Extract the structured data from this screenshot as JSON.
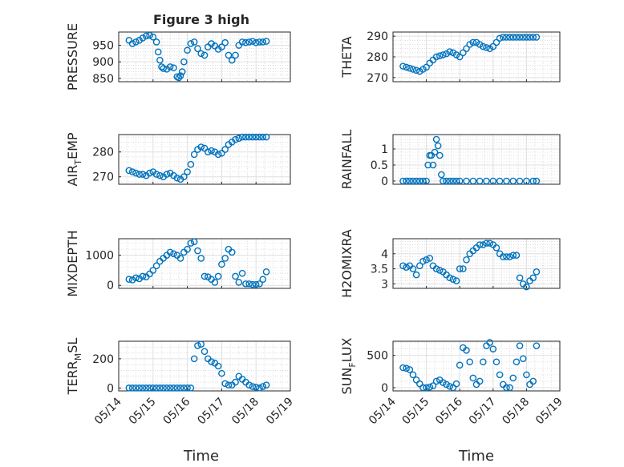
{
  "figure": {
    "title": "Figure 3 high"
  },
  "colors": {
    "marker": "#0072BD",
    "axes": "#262626",
    "grid": "#e0e0e0",
    "minor_grid": "#c8c8c8"
  },
  "chart_data": [
    {
      "type": "scatter",
      "ylabel": "PRESSURE",
      "title": "Figure 3 high",
      "ylim": [
        840,
        990
      ],
      "yticks": [
        850,
        900,
        950
      ],
      "xlim": [
        0,
        5
      ],
      "xticks": [
        "05/14",
        "05/15",
        "05/16",
        "05/17",
        "05/18",
        "05/19"
      ],
      "xticklabels_shown": false,
      "grid": "major+minor",
      "x": [
        0.3,
        0.4,
        0.5,
        0.6,
        0.7,
        0.8,
        0.9,
        1.0,
        1.1,
        1.15,
        1.2,
        1.25,
        1.3,
        1.4,
        1.5,
        1.6,
        1.7,
        1.75,
        1.8,
        1.85,
        1.9,
        2.0,
        2.1,
        2.2,
        2.3,
        2.4,
        2.5,
        2.6,
        2.7,
        2.8,
        2.9,
        3.0,
        3.1,
        3.2,
        3.3,
        3.4,
        3.5,
        3.6,
        3.7,
        3.8,
        3.9,
        4.0,
        4.1,
        4.2,
        4.3
      ],
      "y": [
        965,
        955,
        960,
        965,
        972,
        978,
        980,
        975,
        960,
        930,
        905,
        885,
        880,
        878,
        885,
        882,
        855,
        852,
        858,
        870,
        900,
        935,
        955,
        960,
        940,
        925,
        920,
        945,
        955,
        948,
        938,
        945,
        958,
        920,
        905,
        920,
        950,
        960,
        958,
        960,
        962,
        958,
        960,
        960,
        962
      ]
    },
    {
      "type": "scatter",
      "ylabel": "THETA",
      "ylim": [
        268,
        292
      ],
      "yticks": [
        270,
        280,
        290
      ],
      "xlim": [
        0,
        5
      ],
      "xticks": [
        "05/14",
        "05/15",
        "05/16",
        "05/17",
        "05/18",
        "05/19"
      ],
      "xticklabels_shown": false,
      "grid": "major+minor",
      "x": [
        0.3,
        0.4,
        0.5,
        0.6,
        0.7,
        0.8,
        0.9,
        1.0,
        1.1,
        1.2,
        1.3,
        1.4,
        1.5,
        1.6,
        1.7,
        1.8,
        1.9,
        2.0,
        2.1,
        2.2,
        2.3,
        2.4,
        2.5,
        2.6,
        2.7,
        2.8,
        2.9,
        3.0,
        3.1,
        3.2,
        3.3,
        3.4,
        3.5,
        3.6,
        3.7,
        3.8,
        3.9,
        4.0,
        4.1,
        4.2,
        4.3
      ],
      "y": [
        275.5,
        275,
        274.5,
        274,
        273.5,
        273,
        274,
        275,
        277,
        278.5,
        280,
        280.5,
        281,
        281.5,
        282.5,
        282,
        281,
        280,
        282,
        284,
        286,
        287,
        287,
        286,
        285,
        284.5,
        284,
        285,
        287,
        289,
        289.5,
        289.5,
        289.5,
        289.5,
        289.5,
        289.5,
        289.5,
        289.5,
        289.5,
        289.5,
        289.5
      ]
    },
    {
      "type": "scatter",
      "ylabel": "AIR_TEMP",
      "ylim": [
        267,
        287
      ],
      "yticks": [
        270,
        280
      ],
      "xlim": [
        0,
        5
      ],
      "xticks": [
        "05/14",
        "05/15",
        "05/16",
        "05/17",
        "05/18",
        "05/19"
      ],
      "xticklabels_shown": false,
      "grid": "major+minor",
      "x": [
        0.3,
        0.4,
        0.5,
        0.6,
        0.7,
        0.8,
        0.9,
        1.0,
        1.1,
        1.2,
        1.3,
        1.4,
        1.5,
        1.6,
        1.7,
        1.8,
        1.9,
        2.0,
        2.1,
        2.2,
        2.3,
        2.4,
        2.5,
        2.6,
        2.7,
        2.8,
        2.9,
        3.0,
        3.1,
        3.2,
        3.3,
        3.4,
        3.5,
        3.6,
        3.7,
        3.8,
        3.9,
        4.0,
        4.1,
        4.2,
        4.3
      ],
      "y": [
        272.5,
        272,
        271.5,
        271,
        271,
        270.5,
        271.5,
        272,
        271,
        270.5,
        270,
        271,
        271.5,
        270.5,
        269.5,
        269,
        270,
        272,
        275,
        279,
        281,
        282,
        281.5,
        280,
        280.5,
        280,
        279,
        279.5,
        281,
        283,
        284,
        285,
        285.5,
        286,
        286,
        286,
        286,
        286,
        286,
        286,
        286
      ]
    },
    {
      "type": "scatter",
      "ylabel": "RAINFALL",
      "ylim": [
        -0.1,
        1.45
      ],
      "yticks": [
        0,
        0.5,
        1
      ],
      "yticklabels": [
        "0",
        "0.5",
        "1"
      ],
      "xlim": [
        0,
        5
      ],
      "xticks": [
        "05/14",
        "05/15",
        "05/16",
        "05/17",
        "05/18",
        "05/19"
      ],
      "xticklabels_shown": false,
      "grid": "major+minor",
      "x": [
        0.3,
        0.4,
        0.5,
        0.6,
        0.7,
        0.8,
        0.9,
        1.0,
        1.05,
        1.1,
        1.15,
        1.2,
        1.25,
        1.3,
        1.35,
        1.4,
        1.45,
        1.5,
        1.6,
        1.7,
        1.8,
        1.9,
        2.0,
        2.2,
        2.4,
        2.6,
        2.8,
        3.0,
        3.2,
        3.4,
        3.6,
        3.8,
        4.0,
        4.2,
        4.3
      ],
      "y": [
        0,
        0,
        0,
        0,
        0,
        0,
        0,
        0,
        0.5,
        0.8,
        0.8,
        0.5,
        0.9,
        1.3,
        1.1,
        0.8,
        0.2,
        0,
        0,
        0,
        0,
        0,
        0,
        0,
        0,
        0,
        0,
        0,
        0,
        0,
        0,
        0,
        0,
        0,
        0
      ]
    },
    {
      "type": "scatter",
      "ylabel": "MIXDEPTH",
      "ylim": [
        -100,
        1550
      ],
      "yticks": [
        0,
        1000
      ],
      "xlim": [
        0,
        5
      ],
      "xticks": [
        "05/14",
        "05/15",
        "05/16",
        "05/17",
        "05/18",
        "05/19"
      ],
      "xticklabels_shown": false,
      "grid": "major+minor",
      "x": [
        0.3,
        0.4,
        0.5,
        0.6,
        0.7,
        0.8,
        0.9,
        1.0,
        1.1,
        1.2,
        1.3,
        1.4,
        1.5,
        1.6,
        1.7,
        1.8,
        1.9,
        2.0,
        2.1,
        2.2,
        2.3,
        2.4,
        2.5,
        2.6,
        2.7,
        2.8,
        2.9,
        3.0,
        3.1,
        3.2,
        3.3,
        3.4,
        3.5,
        3.6,
        3.7,
        3.8,
        3.9,
        4.0,
        4.1,
        4.2,
        4.3
      ],
      "y": [
        200,
        180,
        250,
        220,
        300,
        280,
        380,
        500,
        650,
        800,
        900,
        1000,
        1100,
        1050,
        1000,
        900,
        1100,
        1200,
        1400,
        1450,
        1150,
        900,
        300,
        280,
        200,
        100,
        300,
        700,
        900,
        1200,
        1100,
        300,
        100,
        400,
        50,
        50,
        30,
        30,
        50,
        200,
        450
      ]
    },
    {
      "type": "scatter",
      "ylabel": "H2OMIXRA",
      "ylim": [
        2.85,
        4.5
      ],
      "yticks": [
        3,
        3.5,
        4
      ],
      "yticklabels": [
        "3",
        "3.5",
        "4"
      ],
      "xlim": [
        0,
        5
      ],
      "xticks": [
        "05/14",
        "05/15",
        "05/16",
        "05/17",
        "05/18",
        "05/19"
      ],
      "xticklabels_shown": false,
      "grid": "major+minor",
      "x": [
        0.3,
        0.4,
        0.5,
        0.6,
        0.7,
        0.8,
        0.9,
        1.0,
        1.1,
        1.2,
        1.3,
        1.4,
        1.5,
        1.6,
        1.7,
        1.8,
        1.9,
        2.0,
        2.1,
        2.2,
        2.3,
        2.4,
        2.5,
        2.6,
        2.7,
        2.8,
        2.9,
        3.0,
        3.1,
        3.2,
        3.3,
        3.4,
        3.5,
        3.6,
        3.7,
        3.8,
        3.9,
        4.0,
        4.1,
        4.2,
        4.3
      ],
      "y": [
        3.6,
        3.55,
        3.6,
        3.5,
        3.3,
        3.6,
        3.75,
        3.8,
        3.85,
        3.6,
        3.5,
        3.45,
        3.4,
        3.3,
        3.2,
        3.15,
        3.1,
        3.5,
        3.5,
        3.8,
        4.0,
        4.1,
        4.2,
        4.3,
        4.3,
        4.35,
        4.35,
        4.3,
        4.2,
        4.0,
        3.9,
        3.9,
        3.9,
        3.95,
        3.95,
        3.2,
        3.0,
        2.9,
        3.1,
        3.2,
        3.4
      ]
    },
    {
      "type": "scatter",
      "ylabel": "TERR_MSL",
      "ylim": [
        -20,
        320
      ],
      "yticks": [
        0,
        200
      ],
      "xlim": [
        0,
        5
      ],
      "xticks": [
        "05/14",
        "05/15",
        "05/16",
        "05/17",
        "05/18",
        "05/19"
      ],
      "xticklabels_shown": true,
      "grid": "major+minor",
      "x": [
        0.3,
        0.4,
        0.5,
        0.6,
        0.7,
        0.8,
        0.9,
        1.0,
        1.1,
        1.2,
        1.3,
        1.4,
        1.5,
        1.6,
        1.7,
        1.8,
        1.9,
        2.0,
        2.1,
        2.2,
        2.3,
        2.4,
        2.5,
        2.6,
        2.7,
        2.8,
        2.9,
        3.0,
        3.1,
        3.2,
        3.3,
        3.4,
        3.5,
        3.6,
        3.7,
        3.8,
        3.9,
        4.0,
        4.1,
        4.2,
        4.3
      ],
      "y": [
        0,
        0,
        0,
        0,
        0,
        0,
        0,
        0,
        0,
        0,
        0,
        0,
        0,
        0,
        0,
        0,
        0,
        0,
        0,
        200,
        290,
        300,
        250,
        200,
        180,
        170,
        150,
        100,
        30,
        20,
        20,
        40,
        80,
        60,
        40,
        20,
        10,
        5,
        0,
        10,
        20
      ]
    },
    {
      "type": "scatter",
      "ylabel": "SUN_FLUX",
      "ylim": [
        -50,
        720
      ],
      "yticks": [
        0,
        500
      ],
      "xlim": [
        0,
        5
      ],
      "xticks": [
        "05/14",
        "05/15",
        "05/16",
        "05/17",
        "05/18",
        "05/19"
      ],
      "xticklabels_shown": true,
      "grid": "major+minor",
      "x": [
        0.3,
        0.4,
        0.5,
        0.6,
        0.7,
        0.8,
        0.9,
        1.0,
        1.1,
        1.2,
        1.3,
        1.4,
        1.5,
        1.6,
        1.7,
        1.8,
        1.9,
        2.0,
        2.1,
        2.2,
        2.3,
        2.4,
        2.5,
        2.6,
        2.7,
        2.8,
        2.9,
        3.0,
        3.1,
        3.2,
        3.3,
        3.4,
        3.5,
        3.6,
        3.7,
        3.8,
        3.9,
        4.0,
        4.1,
        4.2,
        4.3
      ],
      "y": [
        310,
        300,
        280,
        200,
        120,
        60,
        0,
        0,
        10,
        30,
        100,
        120,
        80,
        50,
        20,
        0,
        60,
        350,
        620,
        580,
        400,
        150,
        50,
        100,
        400,
        650,
        700,
        600,
        400,
        200,
        50,
        0,
        0,
        150,
        400,
        650,
        450,
        200,
        50,
        100,
        650
      ]
    }
  ],
  "xaxis_titles": [
    "Time",
    "Time"
  ]
}
